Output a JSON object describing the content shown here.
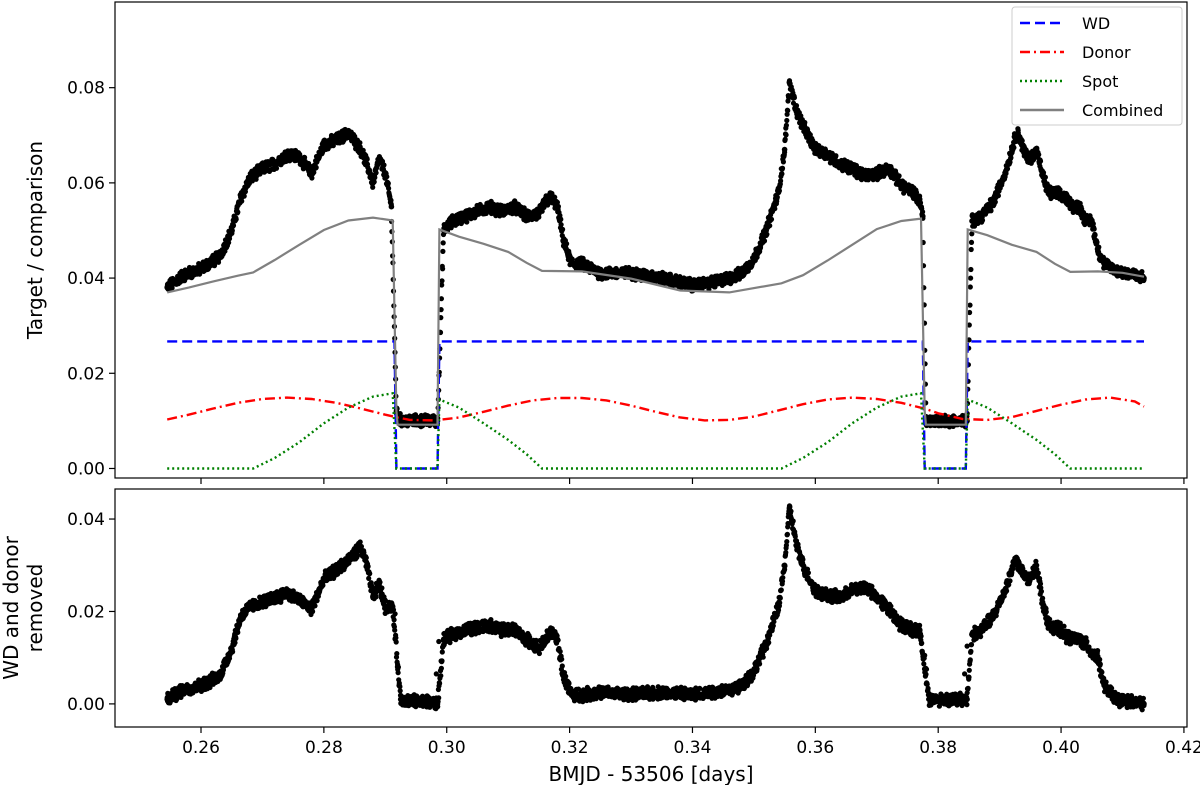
{
  "chart_data": [
    {
      "type": "line",
      "panel": "top",
      "ylabel": "Target / comparison",
      "xlabel": "",
      "xlim": [
        0.246,
        0.4205
      ],
      "ylim": [
        -0.002,
        0.098
      ],
      "x_ticks": [
        0.26,
        0.28,
        0.3,
        0.32,
        0.34,
        0.36,
        0.38,
        0.4,
        0.42
      ],
      "x_tick_labels_shown": false,
      "y_ticks": [
        0.0,
        0.02,
        0.04,
        0.06,
        0.08
      ],
      "y_tick_labels": [
        "0.00",
        "0.02",
        "0.04",
        "0.06",
        "0.08"
      ],
      "legend_position": "top-right",
      "observed_points": {
        "color": "#000000",
        "x": [
          0.2545,
          0.257,
          0.26,
          0.263,
          0.265,
          0.2665,
          0.268,
          0.27,
          0.272,
          0.274,
          0.276,
          0.278,
          0.28,
          0.282,
          0.284,
          0.286,
          0.287,
          0.288,
          0.289,
          0.29,
          0.291,
          0.2918,
          0.2925,
          0.295,
          0.297,
          0.2985,
          0.2995,
          0.301,
          0.303,
          0.305,
          0.307,
          0.309,
          0.311,
          0.313,
          0.315,
          0.316,
          0.317,
          0.318,
          0.319,
          0.32,
          0.3205,
          0.322,
          0.325,
          0.33,
          0.335,
          0.34,
          0.343,
          0.346,
          0.348,
          0.35,
          0.352,
          0.354,
          0.355,
          0.3558,
          0.357,
          0.358,
          0.36,
          0.362,
          0.364,
          0.366,
          0.368,
          0.37,
          0.372,
          0.374,
          0.376,
          0.377,
          0.3775,
          0.378,
          0.38,
          0.383,
          0.3847,
          0.3855,
          0.387,
          0.389,
          0.391,
          0.392,
          0.3925,
          0.393,
          0.394,
          0.395,
          0.396,
          0.397,
          0.398,
          0.4,
          0.401,
          0.402,
          0.403,
          0.404,
          0.405,
          0.406,
          0.407,
          0.409,
          0.411,
          0.4135
        ],
        "y": [
          0.038,
          0.0405,
          0.042,
          0.0445,
          0.05,
          0.057,
          0.061,
          0.063,
          0.064,
          0.066,
          0.0655,
          0.062,
          0.068,
          0.069,
          0.0705,
          0.067,
          0.064,
          0.06,
          0.065,
          0.062,
          0.055,
          0.012,
          0.01,
          0.01,
          0.01,
          0.01,
          0.05,
          0.052,
          0.053,
          0.054,
          0.055,
          0.054,
          0.055,
          0.053,
          0.0535,
          0.056,
          0.057,
          0.055,
          0.048,
          0.044,
          0.043,
          0.043,
          0.041,
          0.041,
          0.04,
          0.0385,
          0.039,
          0.04,
          0.041,
          0.044,
          0.05,
          0.058,
          0.067,
          0.081,
          0.075,
          0.072,
          0.067,
          0.066,
          0.064,
          0.063,
          0.0615,
          0.062,
          0.063,
          0.0595,
          0.058,
          0.056,
          0.053,
          0.01,
          0.01,
          0.01,
          0.01,
          0.052,
          0.053,
          0.056,
          0.0625,
          0.067,
          0.0695,
          0.0705,
          0.0665,
          0.065,
          0.067,
          0.0615,
          0.058,
          0.0575,
          0.0565,
          0.055,
          0.055,
          0.052,
          0.052,
          0.046,
          0.043,
          0.0415,
          0.041,
          0.04
        ]
      },
      "series": [
        {
          "name": "WD",
          "color": "#0000ff",
          "style": "dashed",
          "x": [
            0.2545,
            0.2915,
            0.2918,
            0.2985,
            0.2988,
            0.3775,
            0.3778,
            0.3845,
            0.3848,
            0.4135
          ],
          "y": [
            0.0267,
            0.0267,
            0.0,
            0.0,
            0.0267,
            0.0267,
            0.0,
            0.0,
            0.0267,
            0.0267
          ]
        },
        {
          "name": "Donor",
          "color": "#ff0000",
          "style": "dashdot",
          "x": [
            0.2545,
            0.258,
            0.262,
            0.266,
            0.27,
            0.274,
            0.278,
            0.282,
            0.286,
            0.29,
            0.292,
            0.294,
            0.298,
            0.302,
            0.306,
            0.31,
            0.314,
            0.318,
            0.322,
            0.326,
            0.33,
            0.334,
            0.338,
            0.342,
            0.346,
            0.35,
            0.354,
            0.358,
            0.362,
            0.366,
            0.37,
            0.374,
            0.378,
            0.38,
            0.384,
            0.388,
            0.392,
            0.396,
            0.4,
            0.404,
            0.408,
            0.412,
            0.4135
          ],
          "y": [
            0.0103,
            0.0113,
            0.0126,
            0.0138,
            0.0146,
            0.0149,
            0.0146,
            0.0138,
            0.0126,
            0.0113,
            0.0107,
            0.0102,
            0.0101,
            0.0107,
            0.0119,
            0.0132,
            0.0143,
            0.0148,
            0.0148,
            0.0143,
            0.0132,
            0.0119,
            0.0107,
            0.0101,
            0.0102,
            0.0109,
            0.0122,
            0.0135,
            0.0145,
            0.0149,
            0.0146,
            0.0138,
            0.0125,
            0.0116,
            0.0104,
            0.0102,
            0.0108,
            0.0121,
            0.0134,
            0.0145,
            0.0149,
            0.0141,
            0.013
          ]
        },
        {
          "name": "Spot",
          "color": "#008000",
          "style": "dotted",
          "x": [
            0.2545,
            0.2685,
            0.272,
            0.276,
            0.28,
            0.284,
            0.288,
            0.2912,
            0.2918,
            0.2985,
            0.2988,
            0.302,
            0.306,
            0.31,
            0.313,
            0.3155,
            0.34,
            0.3545,
            0.358,
            0.362,
            0.366,
            0.37,
            0.374,
            0.3772,
            0.3778,
            0.3845,
            0.3848,
            0.388,
            0.392,
            0.396,
            0.399,
            0.4015,
            0.4135
          ],
          "y": [
            0.0,
            0.0,
            0.0022,
            0.0055,
            0.0095,
            0.0128,
            0.0151,
            0.0158,
            0.0,
            0.0,
            0.0145,
            0.0128,
            0.0095,
            0.006,
            0.003,
            0.0,
            0.0,
            0.0,
            0.0022,
            0.0055,
            0.0095,
            0.0128,
            0.0151,
            0.0158,
            0.0,
            0.0,
            0.0145,
            0.0128,
            0.0095,
            0.006,
            0.003,
            0.0,
            0.0
          ]
        },
        {
          "name": "Combined",
          "color": "#808080",
          "style": "solid",
          "x": [
            0.2545,
            0.258,
            0.262,
            0.266,
            0.2685,
            0.272,
            0.276,
            0.28,
            0.284,
            0.288,
            0.2912,
            0.2918,
            0.292,
            0.2985,
            0.2988,
            0.302,
            0.306,
            0.31,
            0.313,
            0.3155,
            0.322,
            0.33,
            0.338,
            0.346,
            0.3545,
            0.358,
            0.362,
            0.366,
            0.37,
            0.374,
            0.3772,
            0.3778,
            0.378,
            0.3845,
            0.3848,
            0.388,
            0.392,
            0.396,
            0.399,
            0.4015,
            0.406,
            0.41,
            0.4135
          ],
          "y": [
            0.037,
            0.038,
            0.0393,
            0.0405,
            0.0412,
            0.0438,
            0.047,
            0.0501,
            0.0521,
            0.0527,
            0.0521,
            0.012,
            0.0092,
            0.0092,
            0.0502,
            0.0487,
            0.0472,
            0.0455,
            0.0432,
            0.0415,
            0.0414,
            0.0399,
            0.0374,
            0.037,
            0.0389,
            0.0406,
            0.0437,
            0.047,
            0.0503,
            0.052,
            0.0525,
            0.012,
            0.0092,
            0.0092,
            0.0502,
            0.049,
            0.047,
            0.0455,
            0.043,
            0.0413,
            0.0414,
            0.0411,
            0.0403
          ]
        }
      ]
    },
    {
      "type": "scatter",
      "panel": "bottom",
      "ylabel": "WD and donor\nremoved",
      "xlabel": "BMJD - 53506 [days]",
      "xlim": [
        0.246,
        0.4205
      ],
      "ylim": [
        -0.005,
        0.0465
      ],
      "x_ticks": [
        0.26,
        0.28,
        0.3,
        0.32,
        0.34,
        0.36,
        0.38,
        0.4,
        0.42
      ],
      "x_tick_labels": [
        "0.26",
        "0.28",
        "0.30",
        "0.32",
        "0.34",
        "0.36",
        "0.38",
        "0.40",
        "0.42"
      ],
      "y_ticks": [
        0.0,
        0.02,
        0.04
      ],
      "y_tick_labels": [
        "0.00",
        "0.02",
        "0.04"
      ],
      "residual_points": {
        "color": "#000000",
        "x": [
          0.2545,
          0.257,
          0.26,
          0.263,
          0.265,
          0.2665,
          0.268,
          0.27,
          0.272,
          0.274,
          0.276,
          0.278,
          0.28,
          0.282,
          0.284,
          0.286,
          0.287,
          0.288,
          0.289,
          0.29,
          0.2912,
          0.2925,
          0.295,
          0.297,
          0.2985,
          0.2995,
          0.301,
          0.303,
          0.305,
          0.307,
          0.309,
          0.311,
          0.313,
          0.315,
          0.316,
          0.317,
          0.318,
          0.319,
          0.32,
          0.3205,
          0.322,
          0.325,
          0.33,
          0.335,
          0.34,
          0.343,
          0.346,
          0.348,
          0.35,
          0.352,
          0.354,
          0.355,
          0.3558,
          0.357,
          0.358,
          0.36,
          0.362,
          0.364,
          0.366,
          0.368,
          0.37,
          0.372,
          0.374,
          0.376,
          0.377,
          0.3785,
          0.38,
          0.383,
          0.3847,
          0.3855,
          0.387,
          0.389,
          0.391,
          0.392,
          0.3925,
          0.393,
          0.394,
          0.395,
          0.396,
          0.397,
          0.398,
          0.4,
          0.401,
          0.402,
          0.403,
          0.404,
          0.405,
          0.406,
          0.407,
          0.409,
          0.411,
          0.4135
        ],
        "y": [
          0.001,
          0.003,
          0.004,
          0.006,
          0.012,
          0.019,
          0.021,
          0.022,
          0.023,
          0.024,
          0.0225,
          0.0205,
          0.027,
          0.029,
          0.031,
          0.034,
          0.03,
          0.023,
          0.026,
          0.021,
          0.021,
          0.001,
          0.0005,
          0.0005,
          0.0,
          0.014,
          0.015,
          0.016,
          0.0165,
          0.017,
          0.016,
          0.016,
          0.014,
          0.012,
          0.014,
          0.0155,
          0.014,
          0.006,
          0.003,
          0.002,
          0.002,
          0.0025,
          0.002,
          0.0025,
          0.002,
          0.0025,
          0.003,
          0.004,
          0.007,
          0.013,
          0.021,
          0.03,
          0.0425,
          0.034,
          0.03,
          0.0245,
          0.0235,
          0.023,
          0.0245,
          0.0255,
          0.023,
          0.0205,
          0.017,
          0.016,
          0.016,
          0.001,
          0.001,
          0.001,
          0.001,
          0.015,
          0.016,
          0.019,
          0.025,
          0.029,
          0.0315,
          0.03,
          0.0275,
          0.027,
          0.03,
          0.022,
          0.017,
          0.016,
          0.0145,
          0.014,
          0.014,
          0.013,
          0.011,
          0.01,
          0.004,
          0.001,
          0.0005,
          0.0
        ]
      },
      "ingress_egress_points": {
        "x": [
          0.2916,
          0.292,
          0.2983,
          0.2987,
          0.3778,
          0.3781,
          0.3843,
          0.3847
        ],
        "y": [
          0.0195,
          0.0085,
          0.0065,
          0.0135,
          0.0105,
          0.0075,
          0.0065,
          0.0125
        ]
      }
    }
  ]
}
